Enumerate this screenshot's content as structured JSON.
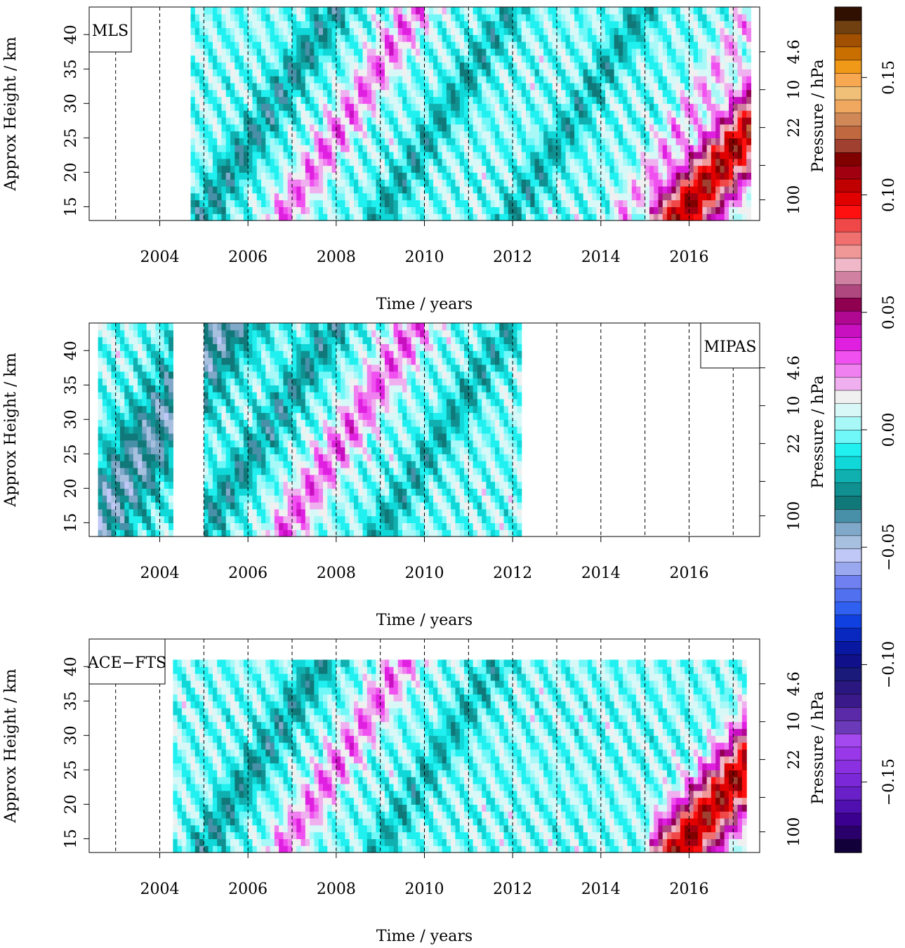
{
  "chart_data": [
    {
      "type": "heatmap",
      "label": "MLS",
      "label_position": "top-left",
      "xlabel": "Time / years",
      "ylabel": "Approx Height / km",
      "y2label": "Pressure / hPa",
      "xlim": [
        2002.4,
        2017.6
      ],
      "ylim": [
        13,
        44
      ],
      "x_ticks": [
        2004,
        2006,
        2008,
        2010,
        2012,
        2014,
        2016
      ],
      "y_ticks": [
        15,
        20,
        25,
        30,
        35,
        40
      ],
      "pressure_ticks": [
        "100",
        "22",
        "10",
        "4.6"
      ],
      "pressure_tick_heights": [
        16,
        21,
        26.5,
        32,
        37.5
      ],
      "data_x_range": [
        2004.65,
        2017.35
      ],
      "year_boundaries": [
        2003,
        2004,
        2005,
        2006,
        2007,
        2008,
        2009,
        2010,
        2011,
        2012,
        2013,
        2014,
        2015,
        2016,
        2017
      ],
      "descending_anomalies": [
        {
          "start": 2006.85,
          "slope": 10,
          "amp": 0.028,
          "width": 0.45
        },
        {
          "start": 2005.0,
          "slope": 10,
          "amp": -0.028,
          "width": 0.45
        },
        {
          "start": 2009.0,
          "slope": 10,
          "amp": -0.022,
          "width": 0.4
        },
        {
          "start": 2012.0,
          "slope": 10,
          "amp": -0.022,
          "width": 0.4
        },
        {
          "start": 2014.5,
          "slope": 10,
          "amp": 0.02,
          "width": 0.35
        },
        {
          "start": 2015.85,
          "slope": 8,
          "amp": 0.11,
          "width": 0.8
        }
      ]
    },
    {
      "type": "heatmap",
      "label": "MIPAS",
      "label_position": "top-right",
      "xlabel": "Time / years",
      "ylabel": "Approx Height / km",
      "y2label": "Pressure / hPa",
      "xlim": [
        2002.4,
        2017.6
      ],
      "ylim": [
        13,
        44
      ],
      "x_ticks": [
        2004,
        2006,
        2008,
        2010,
        2012,
        2014,
        2016
      ],
      "y_ticks": [
        15,
        20,
        25,
        30,
        35,
        40
      ],
      "pressure_ticks": [
        "100",
        "22",
        "10",
        "4.6"
      ],
      "pressure_tick_heights": [
        16,
        21,
        26.5,
        32,
        37.5
      ],
      "data_x_ranges": [
        [
          2002.6,
          2004.3
        ],
        [
          2005.0,
          2012.2
        ]
      ],
      "year_boundaries": [
        2003,
        2004,
        2005,
        2006,
        2007,
        2008,
        2009,
        2010,
        2011,
        2012,
        2013,
        2014,
        2015,
        2016,
        2017
      ],
      "descending_anomalies": [
        {
          "start": 2002.5,
          "slope": 10,
          "amp": -0.04,
          "width": 0.9
        },
        {
          "start": 2006.85,
          "slope": 10,
          "amp": 0.03,
          "width": 0.5
        },
        {
          "start": 2005.0,
          "slope": 10,
          "amp": -0.028,
          "width": 0.45
        },
        {
          "start": 2009.0,
          "slope": 10,
          "amp": -0.022,
          "width": 0.4
        }
      ]
    },
    {
      "type": "heatmap",
      "label": "ACE−FTS",
      "label_position": "top-left",
      "xlabel": "Time / years",
      "ylabel": "Approx Height / km",
      "y2label": "Pressure / hPa",
      "xlim": [
        2002.4,
        2017.6
      ],
      "ylim": [
        13,
        44
      ],
      "x_ticks": [
        2004,
        2006,
        2008,
        2010,
        2012,
        2014,
        2016
      ],
      "y_ticks": [
        15,
        20,
        25,
        30,
        35,
        40
      ],
      "pressure_ticks": [
        "100",
        "22",
        "10",
        "4.6"
      ],
      "pressure_tick_heights": [
        16,
        21,
        26.5,
        32,
        37.5
      ],
      "data_x_range": [
        2004.3,
        2017.3
      ],
      "data_y_max": 41.3,
      "year_boundaries": [
        2003,
        2004,
        2005,
        2006,
        2007,
        2008,
        2009,
        2010,
        2011,
        2012,
        2013,
        2014,
        2015,
        2016,
        2017
      ],
      "descending_anomalies": [
        {
          "start": 2006.85,
          "slope": 10,
          "amp": 0.028,
          "width": 0.45
        },
        {
          "start": 2005.0,
          "slope": 10,
          "amp": -0.026,
          "width": 0.45
        },
        {
          "start": 2009.0,
          "slope": 10,
          "amp": -0.02,
          "width": 0.4
        },
        {
          "start": 2015.85,
          "slope": 8,
          "amp": 0.11,
          "width": 0.8
        }
      ]
    }
  ],
  "colorbar": {
    "range": [
      -0.18,
      0.18
    ],
    "ticks": [
      -0.15,
      -0.1,
      -0.05,
      0.0,
      0.05,
      0.1,
      0.15
    ],
    "tick_labels": [
      "−0.15",
      "−0.10",
      "−0.05",
      "0.00",
      "0.05",
      "0.10",
      "0.15"
    ],
    "colors": [
      "#12003a",
      "#2a006a",
      "#3c0090",
      "#5010b0",
      "#6a20c8",
      "#7a28d8",
      "#8a30e0",
      "#9838e8",
      "#a448f0",
      "#6a3ab8",
      "#5a2aa8",
      "#3a1a8a",
      "#2a1880",
      "#1a1a7a",
      "#10108a",
      "#0818a0",
      "#0828c0",
      "#1040e0",
      "#3060f0",
      "#5070f0",
      "#7080f0",
      "#9aa8f0",
      "#c0c8f8",
      "#a8c0e0",
      "#80a8c8",
      "#4890a8",
      "#107878",
      "#109090",
      "#10b0b0",
      "#10d8d8",
      "#20f0f0",
      "#70f8f8",
      "#a8f8f8",
      "#d8f8f8",
      "#f0f0f0",
      "#f0b0f0",
      "#f080f0",
      "#f050f0",
      "#e020e0",
      "#c810c0",
      "#b00890",
      "#900050",
      "#b04880",
      "#d080a0",
      "#f0b8c8",
      "#f09898",
      "#f07070",
      "#f04848",
      "#ff1010",
      "#e00000",
      "#c00000",
      "#a00010",
      "#800000",
      "#a04030",
      "#c06840",
      "#d08858",
      "#f0a860",
      "#f0c078",
      "#f8a850",
      "#f09818",
      "#c86f00",
      "#a05000",
      "#704010",
      "#301000"
    ]
  }
}
